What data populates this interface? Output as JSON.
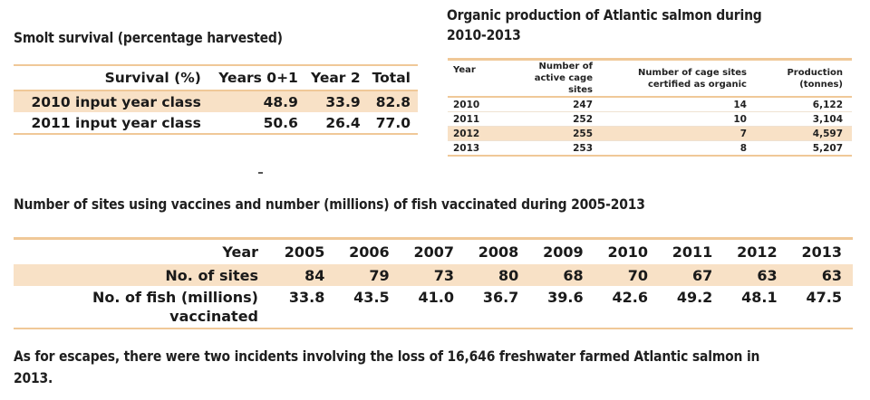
{
  "smolt": {
    "title": "Smolt survival (percentage harvested)",
    "headers": [
      "Survival (%)",
      "Years 0+1",
      "Year 2",
      "Total"
    ],
    "rows": [
      {
        "label": "2010 input year class",
        "y01": "48.9",
        "y2": "33.9",
        "total": "82.8"
      },
      {
        "label": "2011 input year class",
        "y01": "50.6",
        "y2": "26.4",
        "total": "77.0"
      }
    ]
  },
  "organic": {
    "title": "Organic production of Atlantic salmon during 2010-2013",
    "headers": [
      "Year",
      "Number of active cage sites",
      "Number of cage sites certified as organic",
      "Production (tonnes)"
    ],
    "rows": [
      {
        "year": "2010",
        "active": "247",
        "certified": "14",
        "production": "6,122"
      },
      {
        "year": "2011",
        "active": "252",
        "certified": "10",
        "production": "3,104"
      },
      {
        "year": "2012",
        "active": "255",
        "certified": "7",
        "production": "4,597"
      },
      {
        "year": "2013",
        "active": "253",
        "certified": "8",
        "production": "5,207"
      }
    ]
  },
  "vaccines": {
    "title": "Number of sites using vaccines and number (millions) of fish vaccinated during 2005-2013",
    "year_label": "Year",
    "years": [
      "2005",
      "2006",
      "2007",
      "2008",
      "2009",
      "2010",
      "2011",
      "2012",
      "2013"
    ],
    "sites_label": "No. of sites",
    "sites": [
      "84",
      "79",
      "73",
      "80",
      "68",
      "70",
      "67",
      "63",
      "63"
    ],
    "fish_label_1": "No. of fish (millions)",
    "fish_label_2": "vaccinated",
    "fish": [
      "33.8",
      "43.5",
      "41.0",
      "36.7",
      "39.6",
      "42.6",
      "49.2",
      "48.1",
      "47.5"
    ]
  },
  "note": "As for escapes, there were two incidents involving the loss of 16,646 freshwater farmed Atlantic salmon in 2013."
}
